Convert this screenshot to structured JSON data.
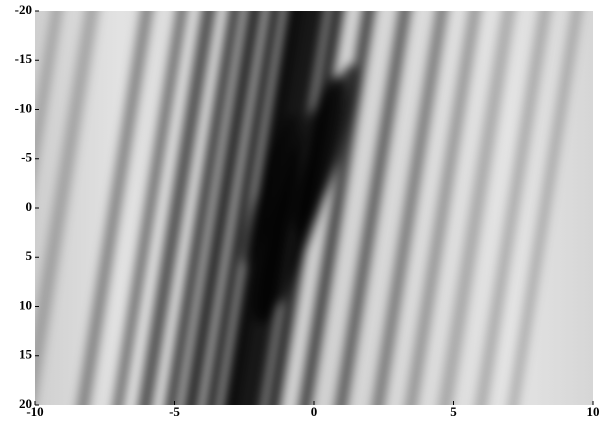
{
  "chart_data": {
    "type": "heatmap",
    "xlim": [
      -10,
      10
    ],
    "xticks": [
      -10,
      -5,
      0,
      5,
      10
    ],
    "ylim": [
      -20,
      20
    ],
    "yticks": [
      -20,
      -15,
      -10,
      -5,
      0,
      5,
      10,
      15,
      20
    ],
    "y_inverted": true
  }
}
